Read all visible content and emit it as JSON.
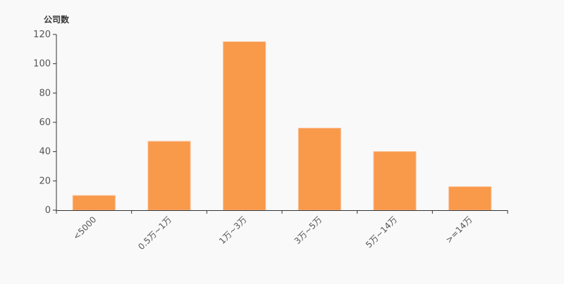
{
  "chart_data": {
    "type": "bar",
    "ylabel": "公司数",
    "xlabel": "",
    "categories": [
      "<5000",
      "0.5万~1万",
      "1万~3万",
      "3万~5万",
      "5万~14万",
      ">=14万"
    ],
    "values": [
      10,
      47,
      115,
      56,
      40,
      16
    ],
    "ylim": [
      0,
      120
    ],
    "yticks": [
      0,
      20,
      40,
      60,
      80,
      100,
      120
    ],
    "grid": false,
    "colors": {
      "bar": "#f9994a",
      "bar_border": "#fbb98a",
      "axis": "#333333",
      "text": "#555555"
    }
  }
}
